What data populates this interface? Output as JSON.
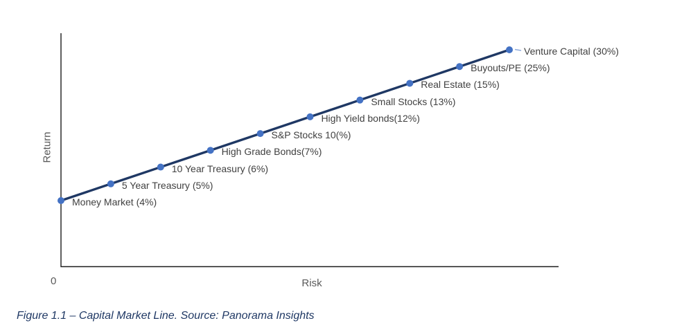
{
  "figure": {
    "caption": "Figure 1.1 – Capital Market Line. Source: Panorama Insights"
  },
  "chart_data": {
    "type": "line",
    "title": "",
    "xlabel": "Risk",
    "ylabel": "Return",
    "x_origin_tick_label": "0",
    "grid": false,
    "legend": "none",
    "axes_note": "No numeric ticks; single upward-sloping line with evenly spaced markers labeled by asset class and return",
    "colors": {
      "line": "#1f3864",
      "marker": "#4472c4",
      "axis": "#1a1a1a",
      "data_label": "#404040",
      "axis_label": "#595959",
      "caption": "#1f3864",
      "leader": "#8eaadb"
    },
    "points": [
      {
        "asset": "Money Market",
        "return_pct": 4,
        "label": "Money Market (4%)"
      },
      {
        "asset": "5 Year Treasury",
        "return_pct": 5,
        "label": "5 Year Treasury (5%)"
      },
      {
        "asset": "10 Year Treasury",
        "return_pct": 6,
        "label": "10 Year Treasury (6%)"
      },
      {
        "asset": "High Grade Bonds",
        "return_pct": 7,
        "label": "High Grade Bonds(7%)"
      },
      {
        "asset": "S&P Stocks",
        "return_pct": 10,
        "label": "S&P Stocks 10(%)"
      },
      {
        "asset": "High Yield bonds",
        "return_pct": 12,
        "label": "High Yield bonds(12%)"
      },
      {
        "asset": "Small Stocks",
        "return_pct": 13,
        "label": "Small Stocks (13%)"
      },
      {
        "asset": "Real Estate",
        "return_pct": 15,
        "label": "Real Estate (15%)"
      },
      {
        "asset": "Buyouts/PE",
        "return_pct": 25,
        "label": "Buyouts/PE (25%)"
      },
      {
        "asset": "Venture Capital",
        "return_pct": 30,
        "label": "Venture Capital (30%)",
        "leader": true
      }
    ]
  }
}
